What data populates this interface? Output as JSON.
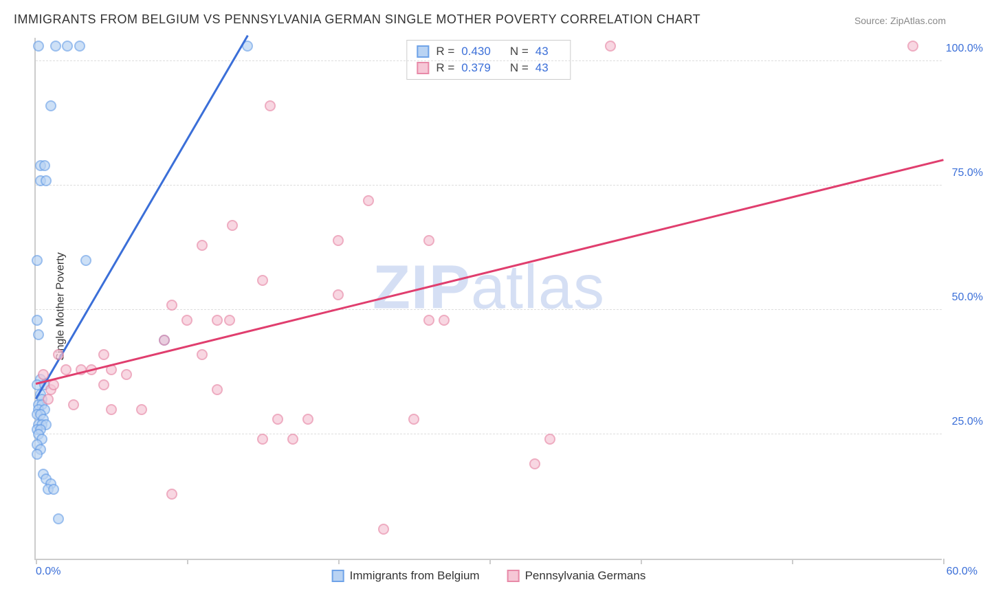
{
  "title": "IMMIGRANTS FROM BELGIUM VS PENNSYLVANIA GERMAN SINGLE MOTHER POVERTY CORRELATION CHART",
  "source": "Source: ZipAtlas.com",
  "ylabel": "Single Mother Poverty",
  "watermark_bold": "ZIP",
  "watermark_rest": "atlas",
  "chart": {
    "type": "scatter",
    "xlim": [
      0,
      60
    ],
    "ylim": [
      0,
      105
    ],
    "background_color": "#ffffff",
    "grid_color": "#dddddd",
    "axis_color": "#cccccc",
    "tick_label_color": "#3b6fd8",
    "tick_fontsize": 16,
    "title_fontsize": 18,
    "ylabel_fontsize": 16,
    "marker_size": 16,
    "marker_opacity": 0.35,
    "line_width": 2.5,
    "x_ticks": [
      0,
      10,
      20,
      30,
      40,
      50,
      60
    ],
    "x_tick_labels": [
      "0.0%",
      "",
      "",
      "",
      "",
      "",
      "60.0%"
    ],
    "y_ticks": [
      25,
      50,
      75,
      100
    ],
    "y_tick_labels": [
      "25.0%",
      "50.0%",
      "75.0%",
      "100.0%"
    ],
    "series": [
      {
        "name": "Immigrants from Belgium",
        "color": "#6fa3e8",
        "fill": "#b9d3f3",
        "R": "0.430",
        "N": "43",
        "trend": {
          "x1": 0,
          "y1": 32,
          "x2": 14,
          "y2": 105,
          "color": "#3b6fd8"
        },
        "points": [
          [
            0.2,
            103
          ],
          [
            1.3,
            103
          ],
          [
            2.1,
            103
          ],
          [
            2.9,
            103
          ],
          [
            14.0,
            103
          ],
          [
            1.0,
            91
          ],
          [
            0.3,
            79
          ],
          [
            0.6,
            79
          ],
          [
            0.3,
            76
          ],
          [
            0.7,
            76
          ],
          [
            0.1,
            60
          ],
          [
            3.3,
            60
          ],
          [
            0.1,
            48
          ],
          [
            0.2,
            45
          ],
          [
            8.5,
            44
          ],
          [
            0.3,
            36
          ],
          [
            0.1,
            35
          ],
          [
            0.6,
            35
          ],
          [
            0.3,
            33
          ],
          [
            0.4,
            32
          ],
          [
            0.2,
            31
          ],
          [
            0.4,
            31
          ],
          [
            0.2,
            30
          ],
          [
            0.6,
            30
          ],
          [
            0.1,
            29
          ],
          [
            0.3,
            29
          ],
          [
            0.5,
            28
          ],
          [
            0.2,
            27
          ],
          [
            0.4,
            27
          ],
          [
            0.7,
            27
          ],
          [
            0.1,
            26
          ],
          [
            0.3,
            26
          ],
          [
            0.2,
            25
          ],
          [
            0.4,
            24
          ],
          [
            0.1,
            23
          ],
          [
            0.3,
            22
          ],
          [
            0.1,
            21
          ],
          [
            0.5,
            17
          ],
          [
            0.7,
            16
          ],
          [
            1.0,
            15
          ],
          [
            0.8,
            14
          ],
          [
            1.5,
            8
          ],
          [
            1.2,
            14
          ]
        ]
      },
      {
        "name": "Pennsylvania Germans",
        "color": "#e88aa8",
        "fill": "#f6c7d6",
        "R": "0.379",
        "N": "43",
        "trend": {
          "x1": 0,
          "y1": 35,
          "x2": 60,
          "y2": 80,
          "color": "#e03e6e"
        },
        "points": [
          [
            38,
            103
          ],
          [
            58,
            103
          ],
          [
            15.5,
            91
          ],
          [
            22,
            72
          ],
          [
            13,
            67
          ],
          [
            11,
            63
          ],
          [
            20,
            64
          ],
          [
            26,
            64
          ],
          [
            15,
            56
          ],
          [
            20,
            53
          ],
          [
            9,
            51
          ],
          [
            10,
            48
          ],
          [
            12,
            48
          ],
          [
            12.8,
            48
          ],
          [
            26,
            48
          ],
          [
            27,
            48
          ],
          [
            8.5,
            44
          ],
          [
            1.5,
            41
          ],
          [
            4.5,
            41
          ],
          [
            11,
            41
          ],
          [
            2,
            38
          ],
          [
            3,
            38
          ],
          [
            3.7,
            38
          ],
          [
            5,
            38
          ],
          [
            6,
            37
          ],
          [
            4.5,
            35
          ],
          [
            12,
            34
          ],
          [
            1,
            34
          ],
          [
            2.5,
            31
          ],
          [
            5,
            30
          ],
          [
            7,
            30
          ],
          [
            16,
            28
          ],
          [
            18,
            28
          ],
          [
            25,
            28
          ],
          [
            34,
            24
          ],
          [
            15,
            24
          ],
          [
            17,
            24
          ],
          [
            33,
            19
          ],
          [
            9,
            13
          ],
          [
            23,
            6
          ],
          [
            0.5,
            37
          ],
          [
            1.2,
            35
          ],
          [
            0.8,
            32
          ]
        ]
      }
    ],
    "legend_top_labels": {
      "R": "R =",
      "N": "N ="
    },
    "legend_bottom_labels": [
      "Immigrants from Belgium",
      "Pennsylvania Germans"
    ]
  }
}
